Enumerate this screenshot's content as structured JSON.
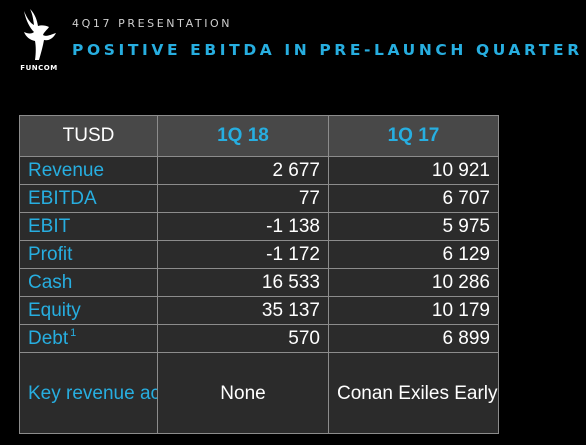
{
  "brand": {
    "logo_text": "FUNCOM",
    "logo_icon": "funcom-hand-logo-icon"
  },
  "header": {
    "subtitle": "4Q17 PRESENTATION",
    "title": "POSITIVE EBITDA IN PRE-LAUNCH QUARTER"
  },
  "colors": {
    "accent": "#27aee0",
    "background": "#000000",
    "table_header_bg": "#484848",
    "table_body_bg": "#2b2b2b",
    "border": "#8c8c8c"
  },
  "table": {
    "headers": [
      "TUSD",
      "1Q 18",
      "1Q 17"
    ],
    "rows": [
      {
        "label": "Revenue",
        "q1_18": "2 677",
        "q1_17": "10 921"
      },
      {
        "label": "EBITDA",
        "q1_18": "77",
        "q1_17": "6 707"
      },
      {
        "label": "EBIT",
        "q1_18": "-1 138",
        "q1_17": "5 975"
      },
      {
        "label": "Profit",
        "q1_18": "-1 172",
        "q1_17": "6 129"
      },
      {
        "label": "Cash",
        "q1_18": "16 533",
        "q1_17": "10 286"
      },
      {
        "label": "Equity",
        "q1_18": "35 137",
        "q1_17": "10 179"
      },
      {
        "label": "Debt",
        "footnote": "1",
        "q1_18": "570",
        "q1_17": "6 899"
      },
      {
        "label": "Key revenue activity",
        "q1_18": "None",
        "q1_17": "Conan Exiles Early Access launch"
      }
    ]
  }
}
